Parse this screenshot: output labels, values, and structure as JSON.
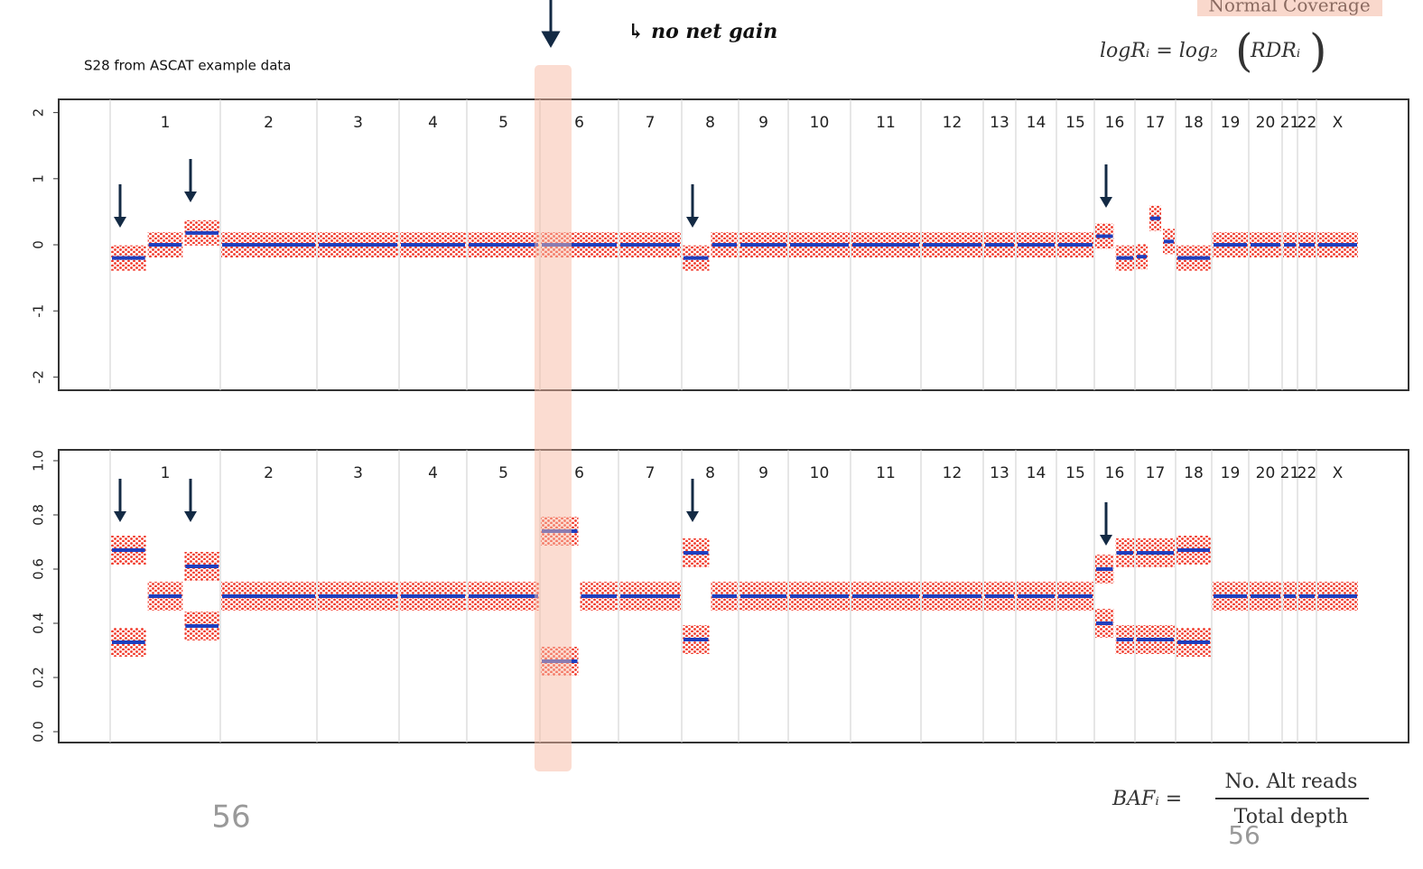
{
  "slide": {
    "top_label": "Normal Coverage",
    "logR_formula": {
      "lhs": "logRᵢ = log₂",
      "arg": "RDRᵢ"
    },
    "subtitle": "S28 from ASCAT example data",
    "annotation": "↳ no net gain",
    "baf_formula": {
      "lhs": "BAFᵢ =",
      "numerator": "No. Alt reads",
      "denominator": "Total depth"
    },
    "page_number": "56",
    "page_number_2": "56"
  },
  "chart_data": [
    {
      "type": "segments",
      "point_color": "#ee2211",
      "segment_color": "#1f3fbf",
      "categories": [
        "1",
        "2",
        "3",
        "4",
        "5",
        "6",
        "7",
        "8",
        "9",
        "10",
        "11",
        "12",
        "13",
        "14",
        "15",
        "16",
        "17",
        "18",
        "19",
        "20",
        "21",
        "22",
        "X"
      ],
      "values": [
        [
          -0.2,
          0,
          0.18
        ],
        [
          0
        ],
        [
          0
        ],
        [
          0
        ],
        [
          0
        ],
        [
          0
        ],
        [
          0
        ],
        [
          -0.2,
          0
        ],
        [
          0
        ],
        [
          0
        ],
        [
          0
        ],
        [
          0
        ],
        [
          0
        ],
        [
          0
        ],
        [
          0
        ],
        [
          0.13,
          -0.2
        ],
        [
          -0.18,
          0.4,
          0.05
        ],
        [
          -0.2
        ],
        [
          0
        ],
        [
          0
        ],
        [
          0
        ],
        [
          0
        ],
        [
          0
        ]
      ],
      "ylim": [
        -2.2,
        2.2
      ],
      "yticks": [
        -2,
        -1,
        0,
        1,
        2
      ]
    },
    {
      "type": "baf",
      "point_color": "#ee2211",
      "segment_color": "#1f3fbf",
      "categories": [
        "1",
        "2",
        "3",
        "4",
        "5",
        "6",
        "7",
        "8",
        "9",
        "10",
        "11",
        "12",
        "13",
        "14",
        "15",
        "16",
        "17",
        "18",
        "19",
        "20",
        "21",
        "22",
        "X"
      ],
      "values": [
        [
          [
            0.67,
            0.33
          ],
          [
            0.5
          ],
          [
            0.61,
            0.39
          ]
        ],
        [
          [
            0.5
          ]
        ],
        [
          [
            0.5
          ]
        ],
        [
          [
            0.5
          ]
        ],
        [
          [
            0.5
          ]
        ],
        [
          [
            0.74,
            0.26
          ],
          [
            0.5
          ]
        ],
        [
          [
            0.5
          ]
        ],
        [
          [
            0.66,
            0.34
          ],
          [
            0.5
          ]
        ],
        [
          [
            0.5
          ]
        ],
        [
          [
            0.5
          ]
        ],
        [
          [
            0.5
          ]
        ],
        [
          [
            0.5
          ]
        ],
        [
          [
            0.5
          ]
        ],
        [
          [
            0.5
          ]
        ],
        [
          [
            0.5
          ]
        ],
        [
          [
            0.6,
            0.4
          ],
          [
            0.66,
            0.34
          ]
        ],
        [
          [
            0.66,
            0.34
          ]
        ],
        [
          [
            0.67,
            0.33
          ]
        ],
        [
          [
            0.5
          ]
        ],
        [
          [
            0.5
          ]
        ],
        [
          [
            0.5
          ]
        ],
        [
          [
            0.5
          ]
        ],
        [
          [
            0.5
          ]
        ]
      ],
      "ylim": [
        -0.04,
        1.04
      ],
      "yticks": [
        {
          "value": 0,
          "label": "0.0"
        },
        {
          "value": 0.2,
          "label": "0.2"
        },
        {
          "value": 0.4,
          "label": "0.4"
        },
        {
          "value": 0.6,
          "label": "0.6"
        },
        {
          "value": 0.8,
          "label": "0.8"
        },
        {
          "value": 1,
          "label": "1.0"
        }
      ]
    }
  ]
}
